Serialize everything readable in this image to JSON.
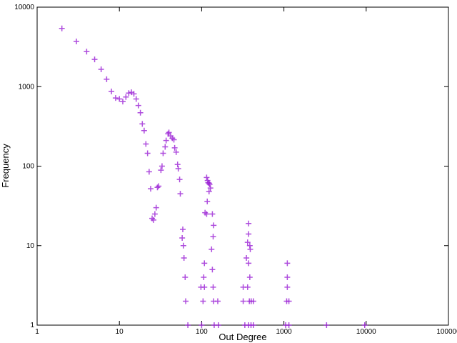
{
  "chart_data": {
    "type": "scatter",
    "x_label": "Out Degree",
    "y_label": "Frequency",
    "xlog": true,
    "ylog": true,
    "xlim": [
      1,
      100000
    ],
    "ylim": [
      1,
      10000
    ],
    "xticks": [
      1,
      10,
      100,
      1000,
      10000,
      100000
    ],
    "yticks": [
      1,
      10,
      100,
      1000,
      10000
    ],
    "color": "#9a1fd4",
    "x": [
      2,
      3,
      4,
      5,
      6,
      7,
      8,
      9,
      10,
      11,
      12,
      13,
      14,
      15,
      16,
      17,
      18,
      19,
      20,
      21,
      22,
      23,
      24,
      25,
      26,
      27,
      28,
      29,
      30,
      32,
      33,
      34,
      36,
      37,
      39,
      40,
      42,
      44,
      46,
      47,
      49,
      51,
      52,
      54,
      55,
      58,
      59,
      60,
      61,
      63,
      64,
      68,
      115,
      118,
      120,
      123,
      125,
      128,
      123,
      117,
      115,
      110,
      135,
      140,
      138,
      132,
      135,
      138,
      140,
      142,
      104,
      108,
      106,
      108,
      98,
      100,
      160,
      157,
      372,
      372,
      362,
      385,
      390,
      350,
      372,
      385,
      362,
      380,
      400,
      320,
      320,
      335,
      426,
      426,
      398,
      372,
      1100,
      1100,
      1100,
      1080,
      1150,
      1050,
      1150,
      3300,
      9600
    ],
    "values": [
      5400,
      3700,
      2760,
      2200,
      1650,
      1240,
      870,
      720,
      700,
      650,
      740,
      830,
      850,
      810,
      700,
      580,
      470,
      340,
      280,
      190,
      145,
      85,
      52,
      22,
      21,
      25,
      30,
      54,
      56,
      89,
      100,
      145,
      175,
      210,
      255,
      265,
      240,
      225,
      215,
      170,
      150,
      105,
      93,
      68,
      45,
      12.5,
      16,
      10,
      7,
      4,
      2,
      1,
      72,
      66,
      62,
      61,
      59,
      53,
      48,
      36,
      25,
      26,
      25,
      18,
      13,
      9,
      5,
      3,
      2,
      1,
      2,
      3,
      4,
      6,
      3,
      1,
      1,
      2,
      19,
      14,
      11,
      10,
      9,
      7,
      6,
      4,
      3,
      2,
      2,
      3,
      2,
      1,
      2,
      1,
      1,
      1,
      6,
      4,
      3,
      2,
      2,
      1,
      1,
      1,
      1
    ]
  }
}
